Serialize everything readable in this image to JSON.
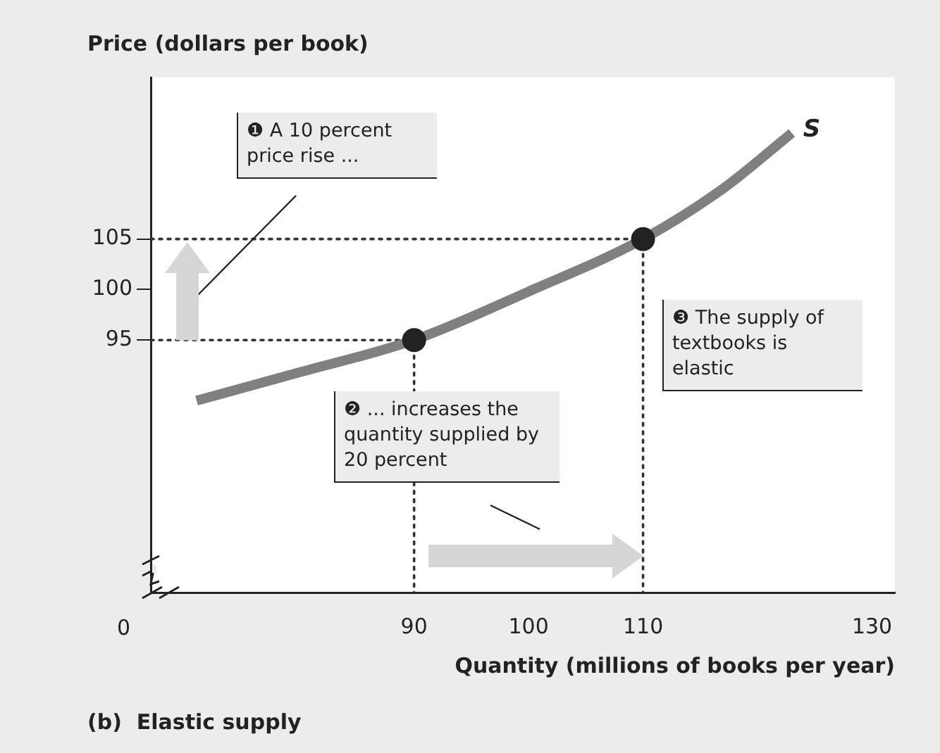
{
  "chart_data": {
    "type": "line",
    "title": "(b)  Elastic supply",
    "xlabel": "Quantity (millions of books per year)",
    "ylabel": "Price (dollars per book)",
    "annotations": [
      "0",
      "❶ A 10 percent price rise ...",
      "❷ ... increases the quantity supplied by 20 percent",
      "❸ The supply of textbooks is elastic"
    ],
    "xlim": [
      67,
      132
    ],
    "xticks": [
      90,
      100,
      110,
      130
    ],
    "ylim": [
      70,
      121
    ],
    "yticks": [
      95,
      100,
      105
    ],
    "grid": false,
    "legend": false,
    "series": [
      {
        "name": "S",
        "type": "line",
        "color": "#808080",
        "marker": "none",
        "line_style": "solid",
        "x": [
          71,
          80,
          90,
          100,
          110,
          117,
          123
        ],
        "values": [
          89,
          91.8,
          95,
          99.8,
          105,
          110,
          115.5
        ]
      },
      {
        "type": "line",
        "color": "#333333",
        "marker": "none",
        "line_style": "dotted",
        "x": [
          67,
          90,
          90
        ],
        "values": [
          95,
          95,
          70
        ]
      },
      {
        "type": "line",
        "color": "#333333",
        "marker": "none",
        "line_style": "dotted",
        "x": [
          67,
          110,
          110
        ],
        "values": [
          105,
          105,
          70
        ]
      },
      {
        "type": "scatter",
        "color": "#222222",
        "marker": "circle",
        "x": [
          90,
          110
        ],
        "values": [
          95,
          105
        ]
      }
    ]
  }
}
